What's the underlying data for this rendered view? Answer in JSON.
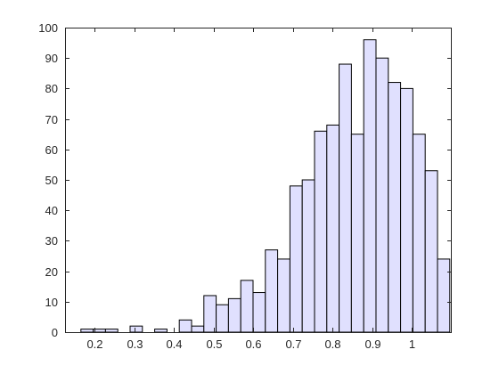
{
  "chart_data": {
    "type": "bar",
    "title": "",
    "xlabel": "",
    "ylabel": "",
    "bin_width": 0.031,
    "bins": [
      {
        "x0": 0.165,
        "count": 1
      },
      {
        "x0": 0.196,
        "count": 1
      },
      {
        "x0": 0.227,
        "count": 1
      },
      {
        "x0": 0.258,
        "count": 0
      },
      {
        "x0": 0.289,
        "count": 2
      },
      {
        "x0": 0.32,
        "count": 0
      },
      {
        "x0": 0.351,
        "count": 1
      },
      {
        "x0": 0.382,
        "count": 0
      },
      {
        "x0": 0.413,
        "count": 4
      },
      {
        "x0": 0.444,
        "count": 2
      },
      {
        "x0": 0.475,
        "count": 12
      },
      {
        "x0": 0.506,
        "count": 9
      },
      {
        "x0": 0.537,
        "count": 11
      },
      {
        "x0": 0.568,
        "count": 17
      },
      {
        "x0": 0.599,
        "count": 13
      },
      {
        "x0": 0.63,
        "count": 27
      },
      {
        "x0": 0.661,
        "count": 24
      },
      {
        "x0": 0.692,
        "count": 48
      },
      {
        "x0": 0.723,
        "count": 50
      },
      {
        "x0": 0.754,
        "count": 66
      },
      {
        "x0": 0.785,
        "count": 68
      },
      {
        "x0": 0.816,
        "count": 88
      },
      {
        "x0": 0.847,
        "count": 65
      },
      {
        "x0": 0.878,
        "count": 96
      },
      {
        "x0": 0.909,
        "count": 90
      },
      {
        "x0": 0.94,
        "count": 82
      },
      {
        "x0": 0.971,
        "count": 80
      },
      {
        "x0": 1.002,
        "count": 65
      },
      {
        "x0": 1.033,
        "count": 53
      },
      {
        "x0": 1.064,
        "count": 24
      }
    ],
    "xlim": [
      0.125,
      1.1
    ],
    "ylim": [
      0,
      100
    ],
    "xticks": [
      0.2,
      0.3,
      0.4,
      0.5,
      0.6,
      0.7,
      0.8,
      0.9,
      1
    ],
    "xtick_labels": [
      "0.2",
      "0.3",
      "0.4",
      "0.5",
      "0.6",
      "0.7",
      "0.8",
      "0.9",
      "1"
    ],
    "yticks": [
      0,
      10,
      20,
      30,
      40,
      50,
      60,
      70,
      80,
      90,
      100
    ],
    "ytick_labels": [
      "0",
      "10",
      "20",
      "30",
      "40",
      "50",
      "60",
      "70",
      "80",
      "90",
      "100"
    ],
    "grid": false,
    "colors": {
      "bar_fill": "#e0e0fe",
      "bar_edge": "#000000",
      "axis": "#262626",
      "background": "#ffffff"
    }
  }
}
